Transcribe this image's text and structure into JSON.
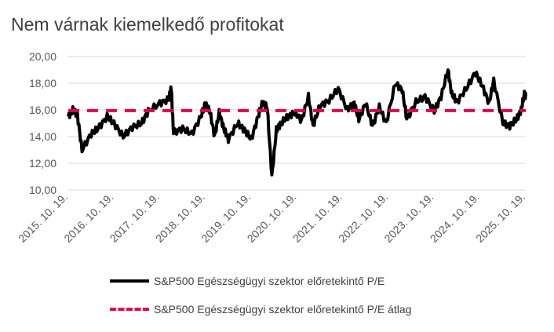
{
  "chart_data": {
    "type": "line",
    "title": "Nem várnak kiemelkedő profitokat",
    "xlabel": "",
    "ylabel": "",
    "ylim": [
      10,
      20
    ],
    "xlim": [
      2015.8,
      2025.8
    ],
    "yticks": [
      "10,00",
      "12,00",
      "14,00",
      "16,00",
      "18,00",
      "20,00"
    ],
    "ytick_values": [
      10,
      12,
      14,
      16,
      18,
      20
    ],
    "xticks": [
      "2015. 10. 19.",
      "2016. 10. 19.",
      "2017. 10. 19.",
      "2018. 10. 19.",
      "2019. 10. 19.",
      "2020. 10. 19.",
      "2021. 10. 19.",
      "2022. 10. 19.",
      "2023. 10. 19.",
      "2024. 10. 19.",
      "2025. 10. 19."
    ],
    "grid": true,
    "legend_position": "bottom",
    "series": [
      {
        "name": "S&P500 Egészségügyi szektor előretekintő P/E",
        "color": "#000000",
        "style": "solid",
        "points": [
          [
            2015.8,
            15.5
          ],
          [
            2015.9,
            16.0
          ],
          [
            2016.0,
            15.6
          ],
          [
            2016.1,
            13.0
          ],
          [
            2016.3,
            14.2
          ],
          [
            2016.45,
            14.6
          ],
          [
            2016.65,
            15.5
          ],
          [
            2016.8,
            15.0
          ],
          [
            2017.0,
            14.0
          ],
          [
            2017.2,
            14.7
          ],
          [
            2017.4,
            15.0
          ],
          [
            2017.55,
            15.9
          ],
          [
            2017.8,
            16.5
          ],
          [
            2018.0,
            16.8
          ],
          [
            2018.05,
            17.7
          ],
          [
            2018.1,
            14.3
          ],
          [
            2018.3,
            14.6
          ],
          [
            2018.5,
            14.2
          ],
          [
            2018.7,
            15.5
          ],
          [
            2018.8,
            16.5
          ],
          [
            2018.9,
            15.8
          ],
          [
            2019.0,
            14.0
          ],
          [
            2019.1,
            15.8
          ],
          [
            2019.2,
            14.6
          ],
          [
            2019.3,
            13.8
          ],
          [
            2019.5,
            15.0
          ],
          [
            2019.65,
            14.5
          ],
          [
            2019.8,
            13.8
          ],
          [
            2019.95,
            15.5
          ],
          [
            2020.05,
            16.6
          ],
          [
            2020.15,
            16.2
          ],
          [
            2020.25,
            11.0
          ],
          [
            2020.35,
            14.5
          ],
          [
            2020.45,
            15.0
          ],
          [
            2020.6,
            15.5
          ],
          [
            2020.75,
            15.8
          ],
          [
            2020.9,
            15.2
          ],
          [
            2021.05,
            17.0
          ],
          [
            2021.15,
            14.8
          ],
          [
            2021.3,
            16.3
          ],
          [
            2021.5,
            16.7
          ],
          [
            2021.7,
            17.6
          ],
          [
            2021.9,
            16.0
          ],
          [
            2022.05,
            16.5
          ],
          [
            2022.15,
            15.3
          ],
          [
            2022.3,
            16.5
          ],
          [
            2022.45,
            14.8
          ],
          [
            2022.6,
            16.2
          ],
          [
            2022.75,
            15.0
          ],
          [
            2022.95,
            18.0
          ],
          [
            2023.1,
            17.5
          ],
          [
            2023.2,
            15.3
          ],
          [
            2023.4,
            16.6
          ],
          [
            2023.6,
            17.0
          ],
          [
            2023.8,
            15.9
          ],
          [
            2023.95,
            17.0
          ],
          [
            2024.1,
            19.0
          ],
          [
            2024.18,
            17.2
          ],
          [
            2024.3,
            16.6
          ],
          [
            2024.5,
            17.6
          ],
          [
            2024.7,
            18.8
          ],
          [
            2024.85,
            17.8
          ],
          [
            2025.0,
            16.5
          ],
          [
            2025.1,
            18.2
          ],
          [
            2025.3,
            15.0
          ],
          [
            2025.45,
            14.8
          ],
          [
            2025.6,
            15.3
          ],
          [
            2025.7,
            16.0
          ],
          [
            2025.77,
            17.2
          ],
          [
            2025.8,
            17.0
          ]
        ]
      },
      {
        "name": "S&P500 Egészségügyi szektor előretekintő P/E átlag",
        "color": "#E8004C",
        "style": "dashed",
        "points": [
          [
            2015.8,
            15.95
          ],
          [
            2025.8,
            15.95
          ]
        ]
      }
    ]
  }
}
